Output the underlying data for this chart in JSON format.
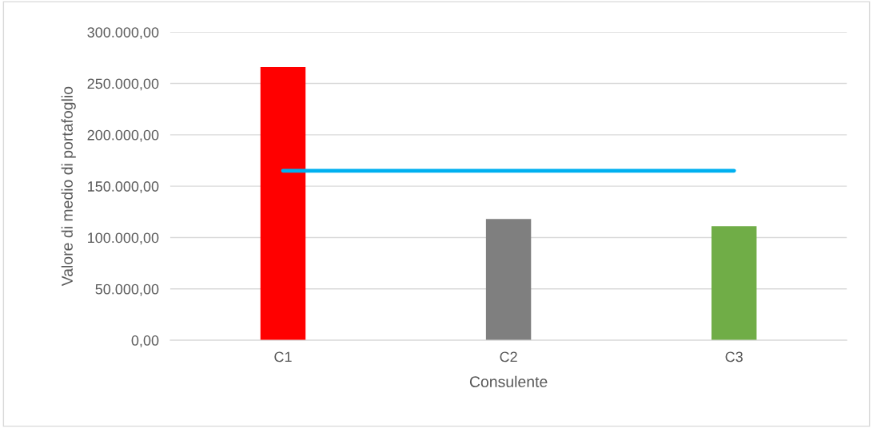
{
  "chart_data": {
    "type": "bar",
    "xlabel": "Consulente",
    "ylabel": "Valore di medio di portafoglio",
    "categories": [
      "C1",
      "C2",
      "C3"
    ],
    "series": [
      {
        "colors": [
          "#ff0000",
          "#7f7f7f",
          "#70ad47"
        ],
        "values": [
          266000,
          118000,
          111000
        ]
      },
      {
        "type": "line",
        "color": "#00b0f0",
        "values": [
          165000,
          165000,
          165000
        ]
      }
    ],
    "ylim": [
      0,
      300000
    ],
    "yticks": [
      {
        "value": 0,
        "label": "0,00"
      },
      {
        "value": 50000,
        "label": "50.000,00"
      },
      {
        "value": 100000,
        "label": "100.000,00"
      },
      {
        "value": 150000,
        "label": "150.000,00"
      },
      {
        "value": 200000,
        "label": "200.000,00"
      },
      {
        "value": 250000,
        "label": "250.000,00"
      },
      {
        "value": 300000,
        "label": "300.000,00"
      }
    ],
    "grid": "y",
    "legend": false
  }
}
